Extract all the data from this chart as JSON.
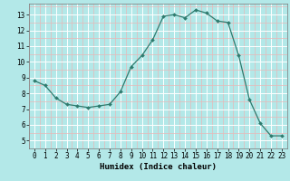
{
  "x": [
    0,
    1,
    2,
    3,
    4,
    5,
    6,
    7,
    8,
    9,
    10,
    11,
    12,
    13,
    14,
    15,
    16,
    17,
    18,
    19,
    20,
    21,
    22,
    23
  ],
  "y": [
    8.8,
    8.5,
    7.7,
    7.3,
    7.2,
    7.1,
    7.2,
    7.3,
    8.1,
    9.7,
    10.4,
    11.4,
    12.9,
    13.0,
    12.8,
    13.3,
    13.1,
    12.6,
    12.5,
    10.4,
    7.6,
    6.1,
    5.3,
    5.3
  ],
  "line_color": "#2e7b6e",
  "marker": "D",
  "marker_size": 2.0,
  "bg_color": "#b3e8e8",
  "grid_color_major": "#ffffff",
  "grid_color_minor": "#e8b8b8",
  "xlabel": "Humidex (Indice chaleur)",
  "xlim": [
    -0.5,
    23.5
  ],
  "ylim": [
    4.5,
    13.7
  ],
  "yticks": [
    5,
    6,
    7,
    8,
    9,
    10,
    11,
    12,
    13
  ],
  "xticks": [
    0,
    1,
    2,
    3,
    4,
    5,
    6,
    7,
    8,
    9,
    10,
    11,
    12,
    13,
    14,
    15,
    16,
    17,
    18,
    19,
    20,
    21,
    22,
    23
  ],
  "label_fontsize": 6.5,
  "tick_fontsize": 5.5
}
